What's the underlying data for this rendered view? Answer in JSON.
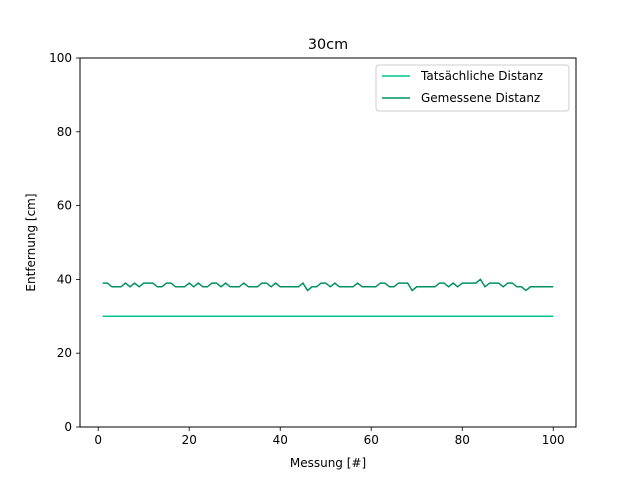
{
  "chart_data": {
    "type": "line",
    "title": "30cm",
    "xlabel": "Messung [#]",
    "ylabel": "Entfernung [cm]",
    "xlim": [
      -4,
      105
    ],
    "ylim": [
      0,
      100
    ],
    "xticks": [
      0,
      20,
      40,
      60,
      80,
      100
    ],
    "yticks": [
      0,
      20,
      40,
      60,
      80,
      100
    ],
    "grid": false,
    "legend_position": "top-right",
    "x": [
      1,
      2,
      3,
      4,
      5,
      6,
      7,
      8,
      9,
      10,
      11,
      12,
      13,
      14,
      15,
      16,
      17,
      18,
      19,
      20,
      21,
      22,
      23,
      24,
      25,
      26,
      27,
      28,
      29,
      30,
      31,
      32,
      33,
      34,
      35,
      36,
      37,
      38,
      39,
      40,
      41,
      42,
      43,
      44,
      45,
      46,
      47,
      48,
      49,
      50,
      51,
      52,
      53,
      54,
      55,
      56,
      57,
      58,
      59,
      60,
      61,
      62,
      63,
      64,
      65,
      66,
      67,
      68,
      69,
      70,
      71,
      72,
      73,
      74,
      75,
      76,
      77,
      78,
      79,
      80,
      81,
      82,
      83,
      84,
      85,
      86,
      87,
      88,
      89,
      90,
      91,
      92,
      93,
      94,
      95,
      96,
      97,
      98,
      99,
      100
    ],
    "series": [
      {
        "name": "Tatsächliche Distanz",
        "color": "#00c48c",
        "values": [
          30,
          30,
          30,
          30,
          30,
          30,
          30,
          30,
          30,
          30,
          30,
          30,
          30,
          30,
          30,
          30,
          30,
          30,
          30,
          30,
          30,
          30,
          30,
          30,
          30,
          30,
          30,
          30,
          30,
          30,
          30,
          30,
          30,
          30,
          30,
          30,
          30,
          30,
          30,
          30,
          30,
          30,
          30,
          30,
          30,
          30,
          30,
          30,
          30,
          30,
          30,
          30,
          30,
          30,
          30,
          30,
          30,
          30,
          30,
          30,
          30,
          30,
          30,
          30,
          30,
          30,
          30,
          30,
          30,
          30,
          30,
          30,
          30,
          30,
          30,
          30,
          30,
          30,
          30,
          30,
          30,
          30,
          30,
          30,
          30,
          30,
          30,
          30,
          30,
          30,
          30,
          30,
          30,
          30,
          30,
          30,
          30,
          30,
          30,
          30
        ]
      },
      {
        "name": "Gemessene Distanz",
        "color": "#009060",
        "values": [
          39,
          39,
          38,
          38,
          38,
          39,
          38,
          39,
          38,
          39,
          39,
          39,
          38,
          38,
          39,
          39,
          38,
          38,
          38,
          39,
          38,
          39,
          38,
          38,
          39,
          39,
          38,
          39,
          38,
          38,
          38,
          39,
          38,
          38,
          38,
          39,
          39,
          38,
          39,
          38,
          38,
          38,
          38,
          38,
          39,
          37,
          38,
          38,
          39,
          39,
          38,
          39,
          38,
          38,
          38,
          38,
          39,
          38,
          38,
          38,
          38,
          39,
          39,
          38,
          38,
          39,
          39,
          39,
          37,
          38,
          38,
          38,
          38,
          38,
          39,
          39,
          38,
          39,
          38,
          39,
          39,
          39,
          39,
          40,
          38,
          39,
          39,
          39,
          38,
          39,
          39,
          38,
          38,
          37,
          38,
          38,
          38,
          38,
          38,
          38
        ]
      }
    ]
  }
}
